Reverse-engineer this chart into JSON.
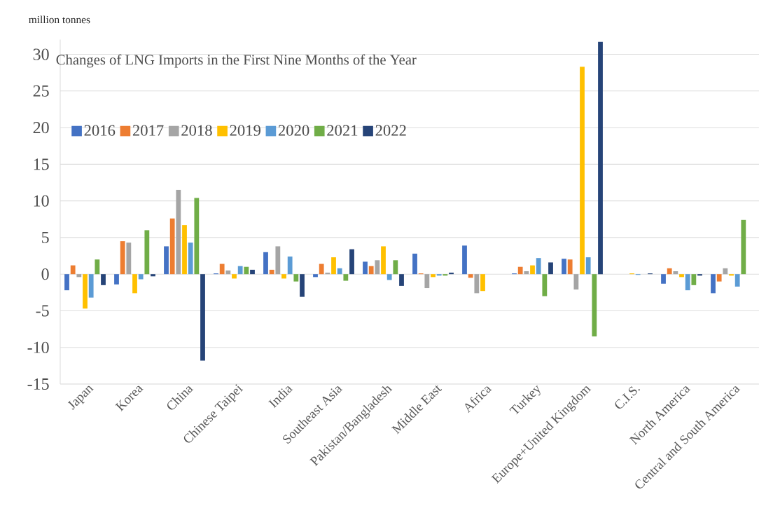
{
  "chart_data": {
    "type": "bar",
    "title": "Changes of LNG Imports in the First Nine Months of the Year",
    "ylabel": "million tonnes",
    "categories": [
      "Japan",
      "Korea",
      "China",
      "Chinese Taipei",
      "India",
      "Southeast Asia",
      "Pakistan/Bangladesh",
      "Middle East",
      "Africa",
      "Turkey",
      "Europe+United Kingdom",
      "C.I.S.",
      "North America",
      "Central and South America"
    ],
    "series": [
      {
        "name": "2016",
        "color": "#4472c4",
        "values": [
          -2.2,
          -1.4,
          3.8,
          0.1,
          3.0,
          -0.4,
          1.7,
          2.8,
          3.9,
          0.1,
          2.1,
          0,
          -1.3,
          -2.6
        ]
      },
      {
        "name": "2017",
        "color": "#ed7d31",
        "values": [
          1.2,
          4.5,
          7.6,
          1.4,
          0.6,
          1.4,
          1.1,
          0.1,
          -0.5,
          1.0,
          2.0,
          0,
          0.8,
          -1.0
        ]
      },
      {
        "name": "2018",
        "color": "#a5a5a5",
        "values": [
          -0.4,
          4.3,
          11.5,
          0.5,
          3.8,
          0.2,
          1.9,
          -1.9,
          -2.6,
          0.4,
          -2.1,
          0,
          0.4,
          0.8
        ]
      },
      {
        "name": "2019",
        "color": "#ffc000",
        "values": [
          -4.7,
          -2.6,
          6.7,
          -0.6,
          -0.6,
          2.3,
          3.8,
          -0.4,
          -2.3,
          1.2,
          28.3,
          0.1,
          -0.4,
          -0.2
        ]
      },
      {
        "name": "2020",
        "color": "#5b9bd5",
        "values": [
          -3.2,
          -0.7,
          4.3,
          1.1,
          2.4,
          0.8,
          -0.8,
          -0.2,
          0,
          2.2,
          2.3,
          -0.1,
          -2.2,
          -1.7
        ]
      },
      {
        "name": "2021",
        "color": "#70ad47",
        "values": [
          2.0,
          6.0,
          10.4,
          1.0,
          -1.0,
          -0.9,
          1.9,
          -0.2,
          0,
          -3.0,
          -8.5,
          0,
          -1.5,
          7.4
        ]
      },
      {
        "name": "2022",
        "color": "#264478",
        "values": [
          -1.5,
          -0.3,
          -11.8,
          0.6,
          -3.1,
          3.4,
          -1.6,
          0.2,
          0,
          1.6,
          31.7,
          0.1,
          -0.2,
          null
        ]
      }
    ],
    "ylim": [
      -15,
      32
    ],
    "yticks": [
      -15,
      -10,
      -5,
      0,
      5,
      10,
      15,
      20,
      25,
      30
    ],
    "grid": "y",
    "legend": "top left"
  }
}
